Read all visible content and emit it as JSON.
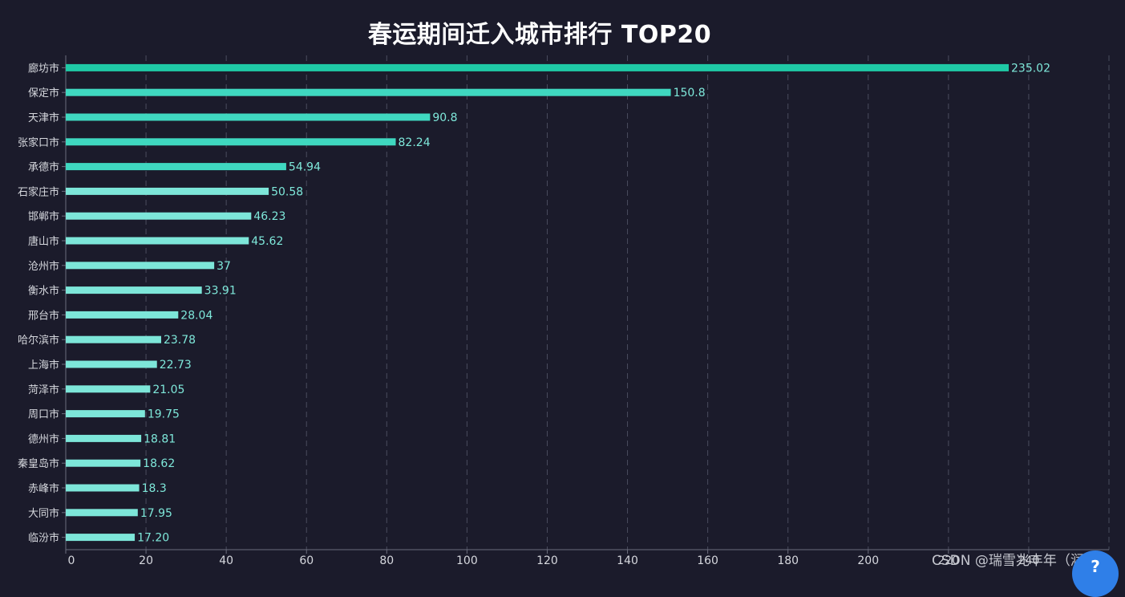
{
  "chart_data": {
    "type": "bar",
    "orientation": "horizontal",
    "title": "春运期间迁入城市排行 TOP20",
    "categories": [
      "廊坊市",
      "保定市",
      "天津市",
      "张家口市",
      "承德市",
      "石家庄市",
      "邯郸市",
      "唐山市",
      "沧州市",
      "衡水市",
      "邢台市",
      "哈尔滨市",
      "上海市",
      "菏泽市",
      "周口市",
      "德州市",
      "秦皇岛市",
      "赤峰市",
      "大同市",
      "临汾市"
    ],
    "values": [
      235.02,
      150.8,
      90.8,
      82.24,
      54.94,
      50.58,
      46.23,
      45.62,
      37,
      33.91,
      28.04,
      23.78,
      22.73,
      21.05,
      19.75,
      18.81,
      18.62,
      18.3,
      17.95,
      17.2
    ],
    "value_labels": [
      "235.02",
      "150.8",
      "90.8",
      "82.24",
      "54.94",
      "50.58",
      "46.23",
      "45.62",
      "37",
      "33.91",
      "28.04",
      "23.78",
      "22.73",
      "21.05",
      "19.75",
      "18.81",
      "18.62",
      "18.3",
      "17.95",
      "17.20"
    ],
    "xticks": [
      0,
      20,
      40,
      60,
      80,
      100,
      120,
      140,
      160,
      180,
      200,
      220,
      240
    ],
    "xlim": [
      0,
      260
    ],
    "grid": "vertical dashed",
    "legend": "none",
    "colors": {
      "top_bar": "#1fc9a6",
      "mid_bar": "#3fd8c0",
      "low_bar": "#7de6d9",
      "label": "#7fe9db",
      "grid": "#4a4c5e",
      "tick": "#d6d8de",
      "background": "#1b1b2b"
    }
  },
  "watermark": "CSDN @瑞雪兆丰年（润）",
  "help_badge": "?"
}
